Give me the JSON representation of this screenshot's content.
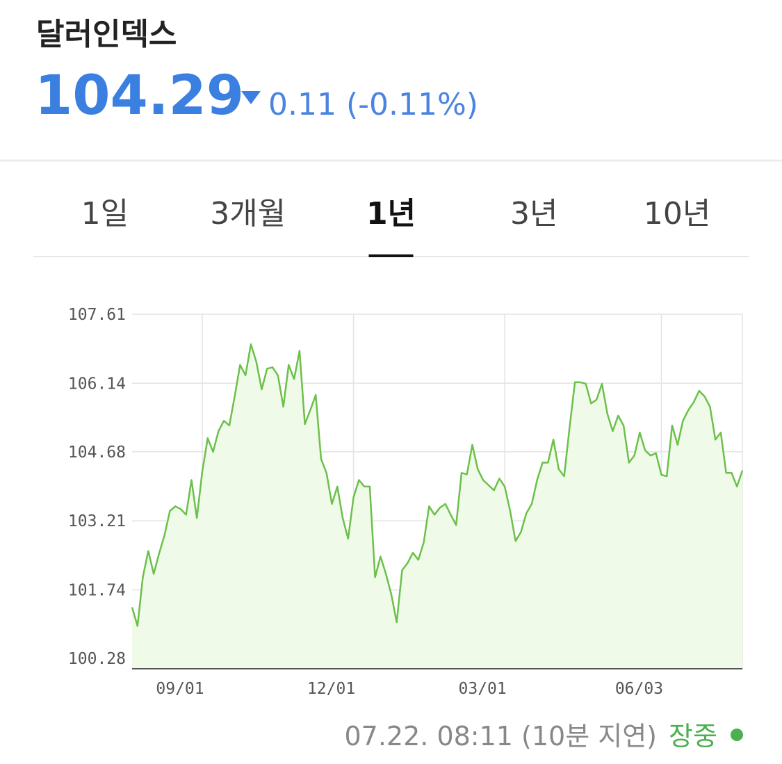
{
  "header": {
    "title": "달러인덱스",
    "price": "104.29",
    "change": "0.11 (-0.11%)"
  },
  "tabs": {
    "items": [
      "1일",
      "3개월",
      "1년",
      "3년",
      "10년"
    ],
    "active": "1년"
  },
  "footer": {
    "timestamp": "07.22. 08:11 (10분 지연)",
    "status": "장중"
  },
  "chart_data": {
    "type": "line",
    "color": "#6cc04a",
    "fill_color": "#effbe8",
    "grid": true,
    "ylim": [
      100.06,
      107.61
    ],
    "yticks": [
      100.28,
      101.74,
      103.21,
      104.68,
      106.14,
      107.61
    ],
    "categories": [
      null,
      null,
      null,
      null,
      null,
      null,
      null,
      null,
      null,
      null,
      null,
      null,
      null,
      "09/01",
      null,
      null,
      null,
      null,
      null,
      null,
      null,
      null,
      null,
      null,
      null,
      null,
      null,
      null,
      null,
      null,
      null,
      null,
      null,
      null,
      null,
      null,
      null,
      null,
      null,
      null,
      null,
      "12/01",
      null,
      null,
      null,
      null,
      null,
      null,
      null,
      null,
      null,
      null,
      null,
      null,
      null,
      null,
      null,
      null,
      null,
      null,
      null,
      null,
      null,
      null,
      null,
      null,
      null,
      null,
      null,
      "03/01",
      null,
      null,
      null,
      null,
      null,
      null,
      null,
      null,
      null,
      null,
      null,
      null,
      null,
      null,
      null,
      null,
      null,
      null,
      null,
      null,
      null,
      null,
      null,
      null,
      null,
      null,
      null,
      null,
      "06/03",
      null,
      null,
      null,
      null,
      null,
      null,
      null,
      null,
      null,
      null,
      null,
      null,
      null,
      null,
      null
    ],
    "values": [
      101.37,
      100.97,
      102.01,
      102.57,
      102.08,
      102.51,
      102.9,
      103.42,
      103.52,
      103.46,
      103.34,
      104.08,
      103.27,
      104.26,
      104.97,
      104.68,
      105.12,
      105.34,
      105.24,
      105.86,
      106.53,
      106.31,
      106.97,
      106.6,
      106.01,
      106.45,
      106.48,
      106.31,
      105.64,
      106.53,
      106.23,
      106.83,
      105.27,
      105.57,
      105.89,
      104.53,
      104.23,
      103.57,
      103.94,
      103.27,
      102.83,
      103.71,
      104.08,
      103.94,
      103.94,
      102.01,
      102.45,
      102.08,
      101.64,
      101.05,
      102.16,
      102.31,
      102.53,
      102.38,
      102.75,
      103.52,
      103.34,
      103.49,
      103.57,
      103.34,
      103.12,
      104.23,
      104.2,
      104.83,
      104.31,
      104.08,
      103.97,
      103.86,
      104.11,
      103.94,
      103.42,
      102.78,
      102.97,
      103.37,
      103.57,
      104.08,
      104.45,
      104.45,
      104.94,
      104.31,
      104.16,
      105.2,
      106.16,
      106.16,
      106.13,
      105.71,
      105.79,
      106.13,
      105.49,
      105.12,
      105.45,
      105.24,
      104.45,
      104.6,
      105.09,
      104.71,
      104.6,
      104.65,
      104.19,
      104.16,
      105.24,
      104.83,
      105.34,
      105.57,
      105.74,
      105.98,
      105.86,
      105.64,
      104.94,
      105.09,
      104.23,
      104.23,
      103.94,
      104.28
    ]
  }
}
